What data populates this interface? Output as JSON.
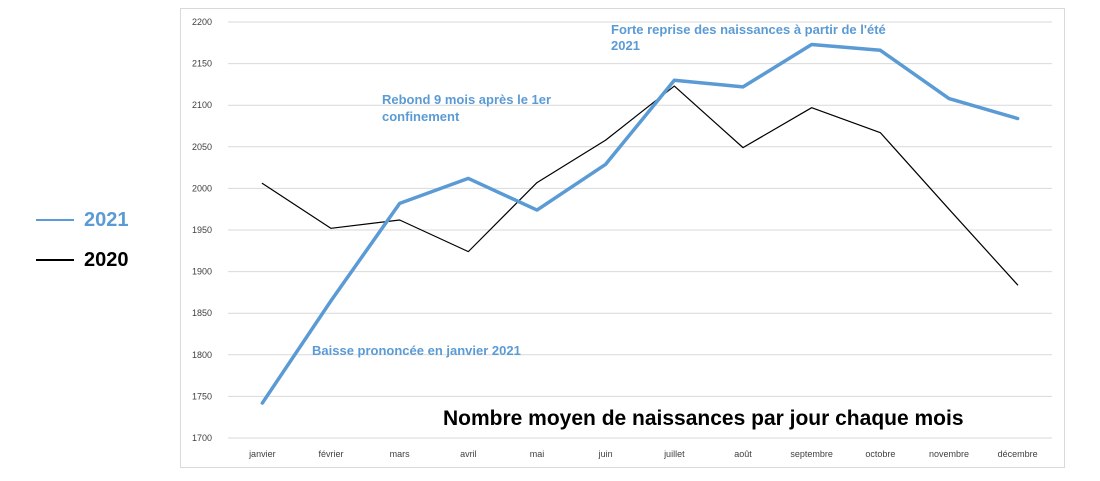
{
  "colors": {
    "series_2021": "#5b9bd5",
    "series_2020": "#000000",
    "grid": "#d9d9d9",
    "annotation": "#5b9bd5"
  },
  "chart_data": {
    "type": "line",
    "title": "Nombre moyen de naissances par jour chaque mois",
    "xlabel": "",
    "ylabel": "",
    "categories": [
      "janvier",
      "février",
      "mars",
      "avril",
      "mai",
      "juin",
      "juillet",
      "août",
      "septembre",
      "octobre",
      "novembre",
      "décembre"
    ],
    "ylim": [
      1700,
      2200
    ],
    "yticks": [
      1700,
      1750,
      1800,
      1850,
      1900,
      1950,
      2000,
      2050,
      2100,
      2150,
      2200
    ],
    "grid": true,
    "legend_position": "left",
    "series": [
      {
        "name": "2021",
        "values": [
          1742,
          1865,
          1982,
          2012,
          1974,
          2029,
          2130,
          2122,
          2173,
          2166,
          2108,
          2084
        ]
      },
      {
        "name": "2020",
        "values": [
          2006,
          1952,
          1962,
          1924,
          2007,
          2058,
          2123,
          2049,
          2097,
          2067,
          1975,
          1884
        ]
      }
    ],
    "annotations": [
      {
        "lines": [
          "Forte reprise des naissances à partir de l'été",
          "2021"
        ]
      },
      {
        "lines": [
          "Rebond 9 mois après le 1er",
          "confinement"
        ]
      },
      {
        "lines": [
          "Baisse prononcée en janvier 2021"
        ]
      }
    ]
  }
}
